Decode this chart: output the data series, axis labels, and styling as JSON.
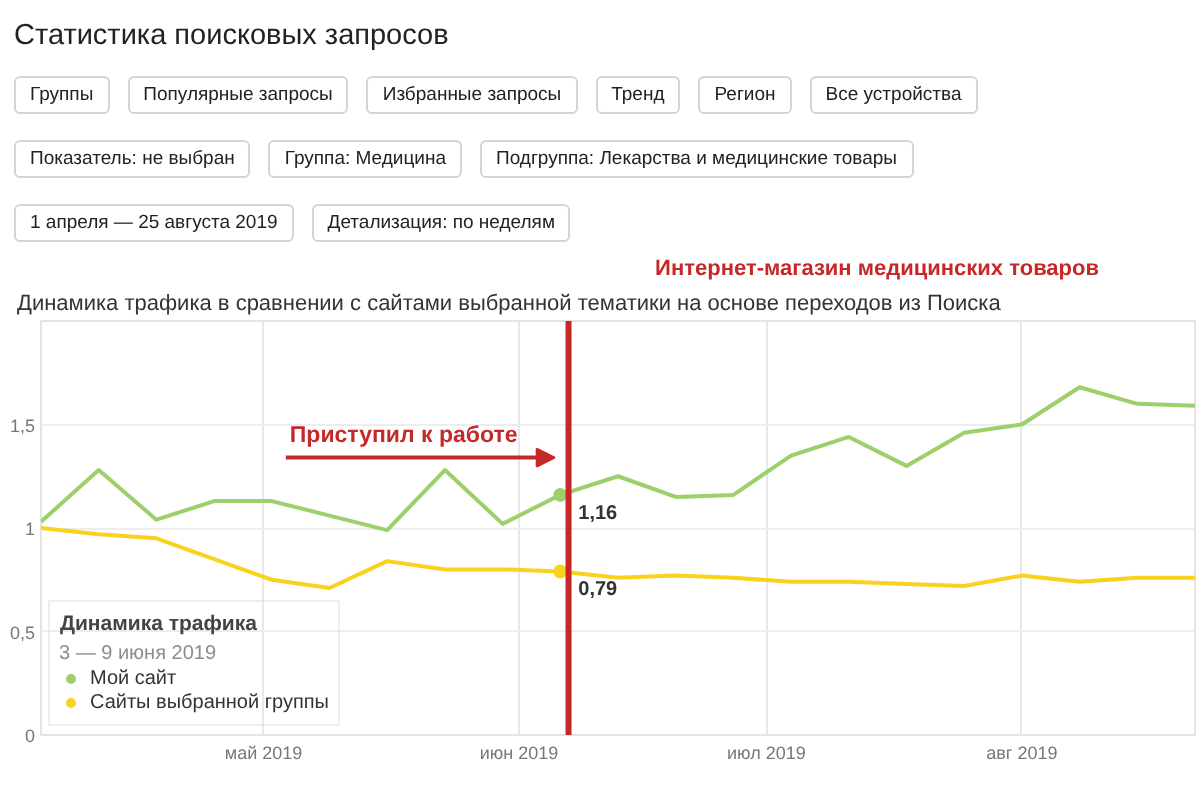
{
  "chart_data": {
    "type": "line",
    "title": "Статистика поисковых запросов",
    "subtitle": "Динамика трафика в сравнении с сайтами выбранной тематики на основе переходов из Поиска",
    "legend_title": "Динамика трафика",
    "annotations": [
      "Интернет-магазин медицинских товаров",
      "3 — 9 июня 2019",
      "Группы",
      "Популярные запросы",
      "Избранные запросы",
      "Тренд",
      "Регион",
      "Все устройства",
      "Показатель: не выбран",
      "Группа: Медицина",
      "Подгруппа: Лекарства и медицинские товары",
      "1 апреля — 25 августа 2019",
      "Детализация: по неделям"
    ],
    "x": [
      "2019-04-04",
      "2019-04-11",
      "2019-04-18",
      "2019-04-25",
      "2019-05-02",
      "2019-05-09",
      "2019-05-16",
      "2019-05-23",
      "2019-05-30",
      "2019-06-06",
      "2019-06-13",
      "2019-06-20",
      "2019-06-27",
      "2019-07-04",
      "2019-07-11",
      "2019-07-18",
      "2019-07-25",
      "2019-08-01",
      "2019-08-08",
      "2019-08-15",
      "2019-08-22"
    ],
    "xlim": [
      "2019-04-04",
      "2019-08-22"
    ],
    "xticks": [
      {
        "value": "2019-05-01",
        "label": "май 2019"
      },
      {
        "value": "2019-06-01",
        "label": "июн 2019"
      },
      {
        "value": "2019-07-01",
        "label": "июл 2019"
      },
      {
        "value": "2019-08-01",
        "label": "авг 2019"
      }
    ],
    "ylim": [
      0,
      2
    ],
    "yticks": [
      0,
      {
        "value": 0.5,
        "label": "0,5"
      },
      1,
      {
        "value": 1.5,
        "label": "1,5"
      }
    ],
    "series": [
      {
        "name": "Мой сайт",
        "color": "#9dcf6a",
        "values": [
          1.03,
          1.28,
          1.04,
          1.13,
          1.13,
          1.06,
          0.99,
          1.28,
          1.02,
          1.16,
          1.25,
          1.15,
          1.16,
          1.35,
          1.44,
          1.3,
          1.46,
          1.5,
          1.68,
          1.6,
          1.59
        ],
        "value_labels": [
          null,
          null,
          null,
          null,
          null,
          null,
          null,
          null,
          null,
          "1,16",
          null,
          null,
          null,
          null,
          null,
          null,
          null,
          null,
          null,
          null,
          null
        ]
      },
      {
        "name": "Сайты выбранной группы",
        "color": "#f8d21c",
        "values": [
          1.0,
          0.97,
          0.95,
          0.85,
          0.75,
          0.71,
          0.84,
          0.8,
          0.8,
          0.79,
          0.76,
          0.77,
          0.76,
          0.74,
          0.74,
          0.73,
          0.72,
          0.77,
          0.74,
          0.76,
          0.76
        ],
        "value_labels": [
          null,
          null,
          null,
          null,
          null,
          null,
          null,
          null,
          null,
          "0,79",
          null,
          null,
          null,
          null,
          null,
          null,
          null,
          null,
          null,
          null,
          null
        ]
      }
    ],
    "ref_lines": [
      {
        "axis": "x",
        "value": "2019-06-07",
        "label": "Приступил к работе",
        "color": "#c62828"
      }
    ],
    "grid": true,
    "legend": "bottom left"
  }
}
